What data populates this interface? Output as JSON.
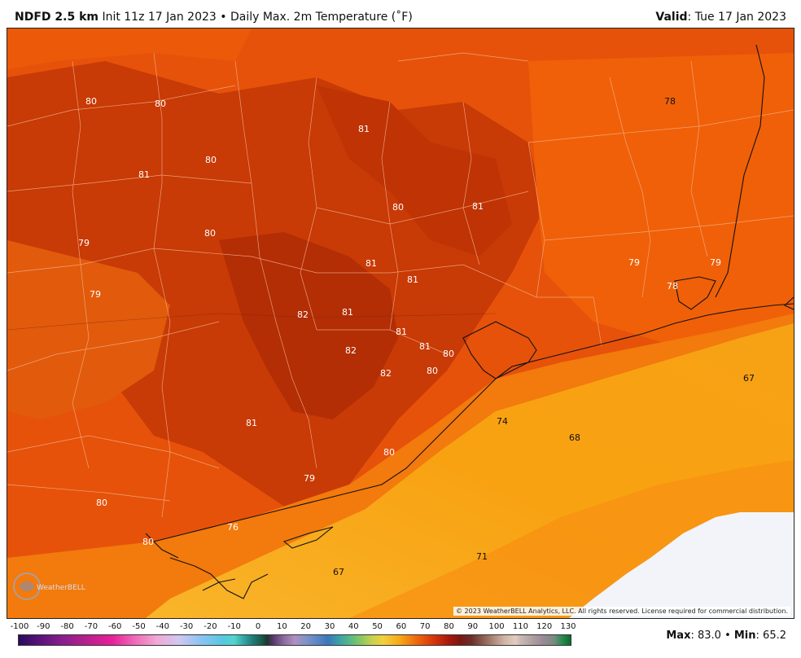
{
  "header": {
    "product": "NDFD 2.5 km",
    "description": "Init 11z 17 Jan 2023 • Daily Max. 2m Temperature (˚F)",
    "valid_label": "Valid",
    "valid_value": ": Tue 17 Jan 2023"
  },
  "map": {
    "copyright": "© 2023 WeatherBELL Analytics, LLC. All rights reserved. License required for commercial distribution.",
    "logo_text": "WeatherBELL",
    "colors": {
      "hot_dark": "#b53005",
      "hot": "#d84309",
      "warm": "#f05e08",
      "mild": "#f88a10",
      "cool": "#f9a91a",
      "no_data": "#f2f4fa"
    },
    "values": [
      {
        "id": "v1",
        "text": "80"
      },
      {
        "id": "v2",
        "text": "80"
      },
      {
        "id": "v3",
        "text": "78"
      },
      {
        "id": "v4",
        "text": "81"
      },
      {
        "id": "v5",
        "text": "80"
      },
      {
        "id": "v6",
        "text": "81"
      },
      {
        "id": "v7",
        "text": "80"
      },
      {
        "id": "v8",
        "text": "81"
      },
      {
        "id": "v9",
        "text": "79"
      },
      {
        "id": "v10",
        "text": "80"
      },
      {
        "id": "v11",
        "text": "81"
      },
      {
        "id": "v12",
        "text": "81"
      },
      {
        "id": "v13",
        "text": "79"
      },
      {
        "id": "v14",
        "text": "79"
      },
      {
        "id": "v15",
        "text": "78"
      },
      {
        "id": "v16",
        "text": "79"
      },
      {
        "id": "v17",
        "text": "82"
      },
      {
        "id": "v18",
        "text": "81"
      },
      {
        "id": "v19",
        "text": "81"
      },
      {
        "id": "v20",
        "text": "82"
      },
      {
        "id": "v21",
        "text": "81"
      },
      {
        "id": "v22",
        "text": "80"
      },
      {
        "id": "v23",
        "text": "80"
      },
      {
        "id": "v24",
        "text": "82"
      },
      {
        "id": "v25",
        "text": "67"
      },
      {
        "id": "v26",
        "text": "74"
      },
      {
        "id": "v27",
        "text": "81"
      },
      {
        "id": "v28",
        "text": "68"
      },
      {
        "id": "v29",
        "text": "80"
      },
      {
        "id": "v30",
        "text": "79"
      },
      {
        "id": "v31",
        "text": "80"
      },
      {
        "id": "v32",
        "text": "76"
      },
      {
        "id": "v33",
        "text": "80"
      },
      {
        "id": "v34",
        "text": "71"
      },
      {
        "id": "v35",
        "text": "67"
      }
    ]
  },
  "legend": {
    "ticks": [
      "-100",
      "-90",
      "-80",
      "-70",
      "-60",
      "-50",
      "-40",
      "-30",
      "-20",
      "-10",
      "0",
      "10",
      "20",
      "30",
      "40",
      "50",
      "60",
      "70",
      "80",
      "90",
      "100",
      "110",
      "120",
      "130"
    ]
  },
  "stats": {
    "max_label": "Max",
    "max_value": ": 83.0 • ",
    "min_label": "Min",
    "min_value": ": 65.2"
  }
}
